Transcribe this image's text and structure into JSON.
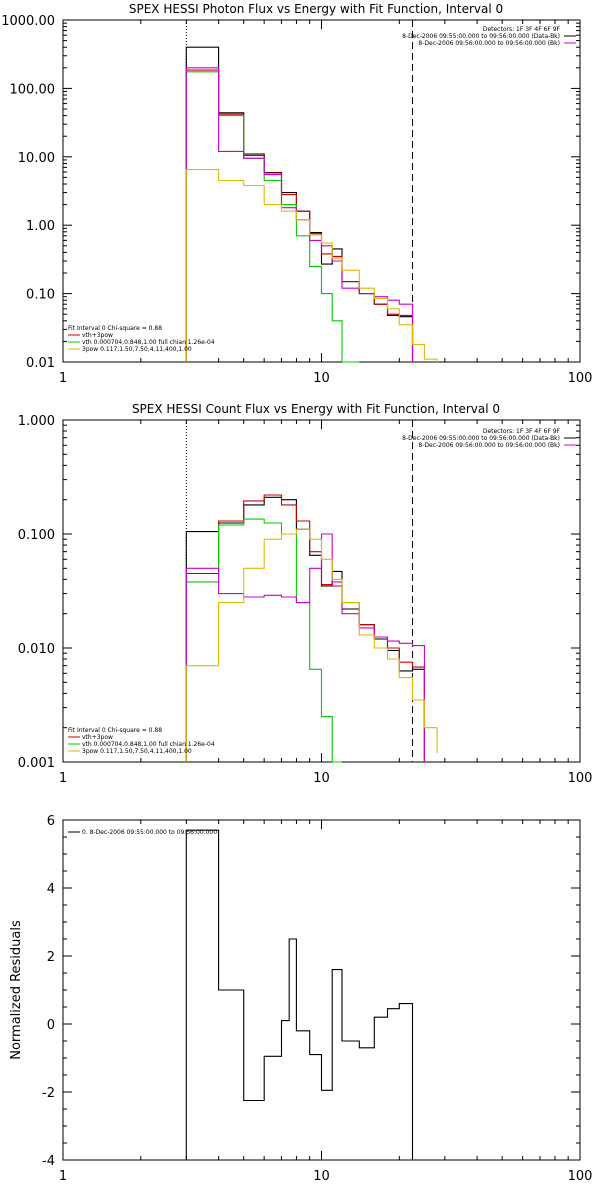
{
  "chart_data": [
    {
      "type": "line",
      "title": "SPEX HESSI Photon Flux vs Energy with Fit Function, Interval 0",
      "xlabel": "",
      "ylabel": "",
      "xscale": "log",
      "yscale": "log",
      "xlim": [
        1,
        100
      ],
      "ylim": [
        0.01,
        1000
      ],
      "x_ticks": [
        "1",
        "10",
        "100"
      ],
      "y_ticks": [
        "0.01",
        "0.10",
        "1.00",
        "10.00",
        "100.00",
        "1000.00"
      ],
      "info_lines": [
        "Detectors: 1F 3F 4F 6F 9F",
        "8-Dec-2006 09:55:00.000 to 09:56:00.000 (Data-Bk)",
        "8-Dec-2006 09:56:00.000 to 09:56:00.000 (Bk)"
      ],
      "info_colors": [
        "#000000",
        "#000000",
        "#cc00cc"
      ],
      "legend_lines": [
        "Fit Interval 0   Chi-square = 0.88",
        "vth+3pow",
        "vth 0.000704,0.848,1.00  full chian 1.26e-04",
        "3pow 0.117,1.50,7.50,4.11,400,1.00"
      ],
      "legend_colors": [
        "#000000",
        "#cc0000",
        "#00cc00",
        "#ddbb00"
      ],
      "vlines": [
        {
          "x": 3.0,
          "style": "dotted"
        },
        {
          "x": 22.5,
          "style": "dashed"
        }
      ],
      "bin_edges": [
        3,
        4,
        5,
        6,
        7,
        8,
        9,
        10,
        11,
        12,
        14,
        16,
        18,
        20,
        22.5,
        25,
        28
      ],
      "series": [
        {
          "color": "#000000",
          "values": [
            400,
            44,
            11,
            5.9,
            3.0,
            1.6,
            0.78,
            0.27,
            0.45,
            0.15,
            0.1,
            0.07,
            0.048,
            0.046
          ]
        },
        {
          "color": "#cc0000",
          "values": [
            185,
            42,
            10.5,
            5.8,
            2.8,
            1.6,
            0.75,
            0.38,
            0.35,
            0.15,
            0.1,
            0.07,
            0.05,
            0.048
          ]
        },
        {
          "color": "#00cc00",
          "values": [
            175,
            40,
            9.5,
            4.5,
            2.0,
            0.7,
            0.25,
            0.1,
            0.04,
            0.008
          ]
        },
        {
          "color": "#cc00cc",
          "values": [
            200,
            12,
            9.5,
            5.5,
            1.8,
            1.2,
            0.6,
            0.5,
            0.3,
            0.12,
            0.1,
            0.09,
            0.08,
            0.07
          ]
        },
        {
          "color": "#ddbb00",
          "values": [
            6.5,
            4.5,
            3.8,
            2.0,
            1.6,
            1.2,
            0.72,
            0.55,
            0.33,
            0.22,
            0.12,
            0.085,
            0.06,
            0.035,
            0.018,
            0.011
          ]
        }
      ]
    },
    {
      "type": "line",
      "title": "SPEX HESSI Count Flux vs Energy with Fit Function, Interval 0",
      "xlabel": "",
      "ylabel": "",
      "xscale": "log",
      "yscale": "log",
      "xlim": [
        1,
        100
      ],
      "ylim": [
        0.001,
        1
      ],
      "x_ticks": [
        "1",
        "10",
        "100"
      ],
      "y_ticks": [
        "0.001",
        "0.010",
        "0.100",
        "1.000"
      ],
      "info_lines": [
        "Detectors: 1F 3F 4F 6F 9F",
        "8-Dec-2006 09:55:00.000 to 09:56:00.000 (Data-Bk)",
        "8-Dec-2006 09:56:00.000 to 09:56:00.000 (Bk)"
      ],
      "info_colors": [
        "#000000",
        "#000000",
        "#cc00cc"
      ],
      "legend_lines": [
        "Fit Interval 0   Chi-square = 0.88",
        "vth+3pow",
        "vth 0.000704,0.848,1.00  full chian 1.26e-04",
        "3pow 0.117,1.50,7.50,4.11,400,1.00"
      ],
      "legend_colors": [
        "#000000",
        "#cc0000",
        "#00cc00",
        "#ddbb00"
      ],
      "vlines": [
        {
          "x": 3.0,
          "style": "dotted"
        },
        {
          "x": 22.5,
          "style": "dashed"
        }
      ],
      "bin_edges": [
        3,
        4,
        5,
        6,
        7,
        8,
        9,
        10,
        11,
        12,
        14,
        16,
        18,
        20,
        22.5,
        25,
        28
      ],
      "series": [
        {
          "color": "#000000",
          "values": [
            0.105,
            0.125,
            0.18,
            0.21,
            0.2,
            0.11,
            0.065,
            0.035,
            0.047,
            0.022,
            0.016,
            0.012,
            0.0095,
            0.0063,
            0.0065
          ]
        },
        {
          "color": "#cc0000",
          "values": [
            0.045,
            0.13,
            0.195,
            0.22,
            0.18,
            0.13,
            0.07,
            0.036,
            0.035,
            0.025,
            0.016,
            0.0125,
            0.01,
            0.0075,
            0.0068
          ]
        },
        {
          "color": "#00cc00",
          "values": [
            0.038,
            0.12,
            0.135,
            0.125,
            0.1,
            0.025,
            0.0065,
            0.0025,
            0.001
          ]
        },
        {
          "color": "#cc00cc",
          "values": [
            0.05,
            0.03,
            0.028,
            0.029,
            0.028,
            0.025,
            0.05,
            0.1,
            0.038,
            0.02,
            0.015,
            0.0125,
            0.0115,
            0.011,
            0.0105
          ]
        },
        {
          "color": "#ddbb00",
          "values": [
            0.007,
            0.025,
            0.05,
            0.09,
            0.1,
            0.11,
            0.09,
            0.06,
            0.04,
            0.025,
            0.013,
            0.01,
            0.008,
            0.0055,
            0.0035,
            0.002,
            0.0012
          ]
        }
      ]
    },
    {
      "type": "line",
      "title": "",
      "xlabel": "",
      "ylabel": "Normalized Residuals",
      "xscale": "log",
      "yscale": "linear",
      "xlim": [
        1,
        100
      ],
      "ylim": [
        -4,
        6
      ],
      "x_ticks": [
        "1",
        "10",
        "100"
      ],
      "y_ticks": [
        "-4",
        "-2",
        "0",
        "2",
        "4",
        "6"
      ],
      "legend_lines": [
        "0. 8-Dec-2006 09:55:00.000 to 09:56:00.000"
      ],
      "legend_colors": [
        "#000000"
      ],
      "bin_edges": [
        3,
        4,
        5,
        6,
        7,
        7.5,
        8,
        9,
        10,
        11,
        12,
        14,
        16,
        18,
        20,
        22.5
      ],
      "series": [
        {
          "color": "#000000",
          "values": [
            5.7,
            1.0,
            -2.25,
            -0.95,
            0.1,
            2.5,
            -0.2,
            -0.9,
            -1.95,
            1.6,
            -0.5,
            -0.7,
            0.2,
            0.45,
            0.6
          ]
        }
      ]
    }
  ]
}
